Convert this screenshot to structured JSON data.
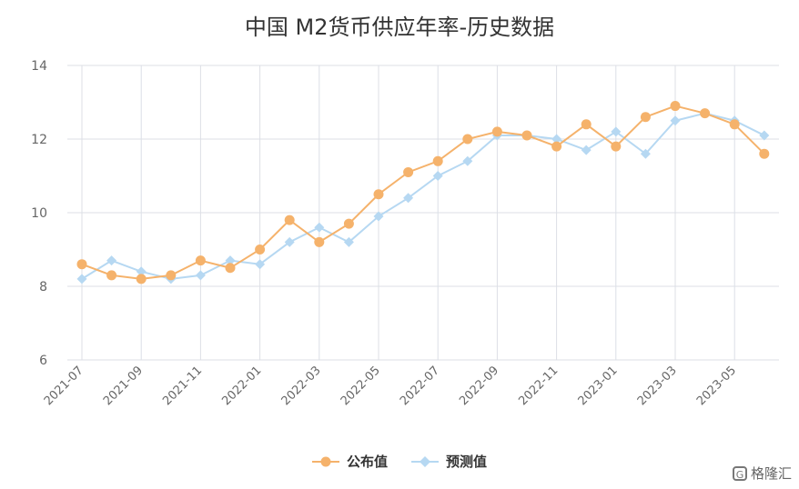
{
  "chart_data": {
    "type": "line",
    "title": "中国 M2货币供应年率-历史数据",
    "x": [
      "2021-07",
      "2021-08",
      "2021-09",
      "2021-10",
      "2021-11",
      "2021-12",
      "2022-01",
      "2022-02",
      "2022-03",
      "2022-04",
      "2022-05",
      "2022-06",
      "2022-07",
      "2022-08",
      "2022-09",
      "2022-10",
      "2022-11",
      "2022-12",
      "2023-01",
      "2023-02",
      "2023-03",
      "2023-04",
      "2023-05",
      "2023-06"
    ],
    "x_tick_labels": [
      "2021-07",
      "2021-09",
      "2021-11",
      "2022-01",
      "2022-03",
      "2022-05",
      "2022-07",
      "2022-09",
      "2022-11",
      "2023-01",
      "2023-03",
      "2023-05"
    ],
    "y_ticks": [
      "14",
      "12",
      "10",
      "8",
      "6"
    ],
    "ylim": [
      6,
      14
    ],
    "grid": true,
    "legend_position": "bottom-center",
    "series": [
      {
        "name": "公布值",
        "color": "#F5B26B",
        "marker": "circle",
        "values": [
          8.6,
          8.3,
          8.2,
          8.3,
          8.7,
          8.5,
          9.0,
          9.8,
          9.2,
          9.7,
          10.5,
          11.1,
          11.4,
          12.0,
          12.2,
          12.1,
          11.8,
          12.4,
          11.8,
          12.6,
          12.9,
          12.7,
          12.4,
          11.6
        ]
      },
      {
        "name": "预测值",
        "color": "#B6D8F2",
        "marker": "diamond",
        "values": [
          8.2,
          8.7,
          8.4,
          8.2,
          8.3,
          8.7,
          8.6,
          9.2,
          9.6,
          9.2,
          9.9,
          10.4,
          11.0,
          11.4,
          12.1,
          12.1,
          12.0,
          11.7,
          12.2,
          11.6,
          12.5,
          12.7,
          12.5,
          12.1
        ]
      }
    ]
  },
  "watermark": {
    "icon_glyph": "G",
    "text": "格隆汇"
  },
  "colors": {
    "grid": "#DCDFE6",
    "axis_text": "#666666"
  }
}
